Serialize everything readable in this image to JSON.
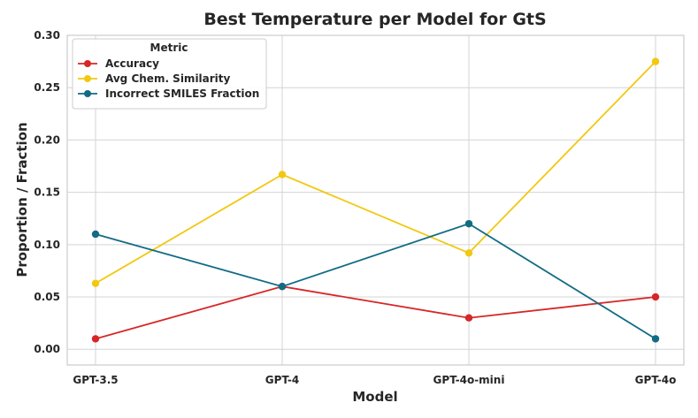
{
  "chart_data": {
    "type": "line",
    "title": "Best Temperature per Model for GtS",
    "xlabel": "Model",
    "ylabel": "Proportion / Fraction",
    "categories": [
      "GPT-3.5",
      "GPT-4",
      "GPT-4o-mini",
      "GPT-4o"
    ],
    "ylim": [
      -0.015,
      0.3
    ],
    "yticks": [
      0.0,
      0.05,
      0.1,
      0.15,
      0.2,
      0.25,
      0.3
    ],
    "ytick_labels": [
      "0.00",
      "0.05",
      "0.10",
      "0.15",
      "0.20",
      "0.25",
      "0.30"
    ],
    "grid": true,
    "legend": {
      "title": "Metric",
      "position": "top-left"
    },
    "series": [
      {
        "name": "Accuracy",
        "color": "#d62728",
        "values": [
          0.01,
          0.06,
          0.03,
          0.05
        ]
      },
      {
        "name": "Avg Chem. Similarity",
        "color": "#f2c811",
        "values": [
          0.063,
          0.167,
          0.092,
          0.275
        ]
      },
      {
        "name": "Incorrect SMILES Fraction",
        "color": "#126b85",
        "values": [
          0.11,
          0.06,
          0.12,
          0.01
        ]
      }
    ]
  }
}
